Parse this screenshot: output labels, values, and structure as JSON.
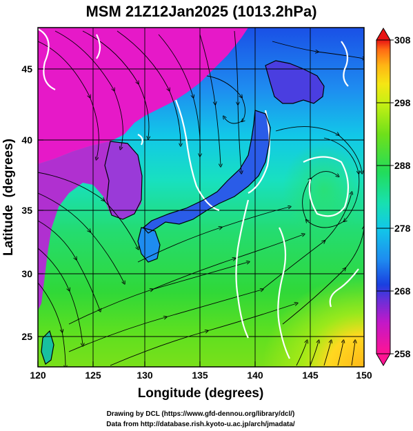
{
  "title": "MSM 21Z12Jan2025 (1013.2hPa)",
  "x_axis": {
    "label": "Longitude (degrees)",
    "ticks": [
      "120",
      "125",
      "130",
      "135",
      "140",
      "145",
      "150"
    ],
    "range": [
      120,
      150
    ]
  },
  "y_axis": {
    "label": "Latitude  (degrees)",
    "ticks": [
      "25",
      "30",
      "35",
      "40",
      "45"
    ],
    "range": [
      22.5,
      47.5
    ]
  },
  "colorbar": {
    "ticks": [
      "258",
      "268",
      "278",
      "288",
      "298",
      "308"
    ],
    "range": [
      258,
      308
    ],
    "colors": [
      "#ff1493",
      "#c218c8",
      "#6a2fd8",
      "#1a3fe0",
      "#1e8cf0",
      "#12c8e8",
      "#18e0b0",
      "#22dc5a",
      "#6fe01a",
      "#c8f014",
      "#f5e614",
      "#ffb414",
      "#ff6a14",
      "#e81414"
    ]
  },
  "credits": {
    "line1": "Drawing by DCL (https://www.gfd-dennou.org/library/dcl/)",
    "line2": "Data from http://database.rish.kyoto-u.ac.jp/arch/jmadata/"
  },
  "map": {
    "field": "temperature (K) with wind streamlines",
    "colors": {
      "land_cold": "#e619c8",
      "continent": "#b030d0",
      "sea_cold": "#1a4fe6",
      "sea_mid": "#12c8e8",
      "sea_warm": "#30dc48",
      "sea_hot": "#ffd020",
      "isotherm": "#ffffff",
      "streamline": "#000000",
      "coastline": "#000000"
    }
  }
}
